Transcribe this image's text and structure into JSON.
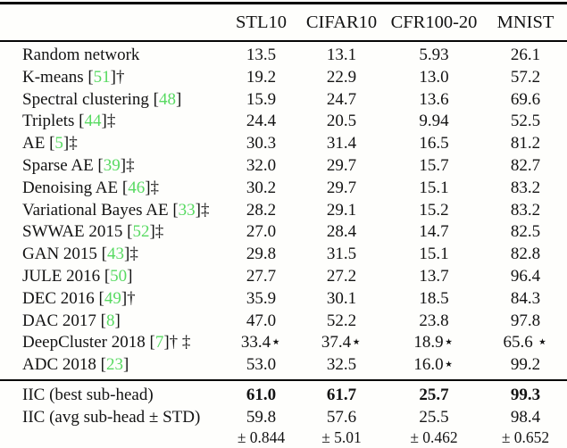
{
  "colors": {
    "citation_green": "#58da62",
    "text": "#131313",
    "rule": "#050505"
  },
  "header": {
    "columns": [
      "STL10",
      "CIFAR10",
      "CFR100-20",
      "MNIST"
    ]
  },
  "rows": [
    {
      "prefix": "Random network",
      "cite": "",
      "suffix": "",
      "values": [
        "13.5",
        "13.1",
        "5.93",
        "26.1"
      ]
    },
    {
      "prefix": "K-means [",
      "cite": "51",
      "suffix": "]†",
      "values": [
        "19.2",
        "22.9",
        "13.0",
        "57.2"
      ]
    },
    {
      "prefix": "Spectral clustering [",
      "cite": "48",
      "suffix": "]",
      "values": [
        "15.9",
        "24.7",
        "13.6",
        "69.6"
      ]
    },
    {
      "prefix": "Triplets [",
      "cite": "44",
      "suffix": "]‡",
      "values": [
        "24.4",
        "20.5",
        "9.94",
        "52.5"
      ]
    },
    {
      "prefix": "AE [",
      "cite": "5",
      "suffix": "]‡",
      "values": [
        "30.3",
        "31.4",
        "16.5",
        "81.2"
      ]
    },
    {
      "prefix": "Sparse AE [",
      "cite": "39",
      "suffix": "]‡",
      "values": [
        "32.0",
        "29.7",
        "15.7",
        "82.7"
      ]
    },
    {
      "prefix": "Denoising AE [",
      "cite": "46",
      "suffix": "]‡",
      "values": [
        "30.2",
        "29.7",
        "15.1",
        "83.2"
      ]
    },
    {
      "prefix": "Variational Bayes AE [",
      "cite": "33",
      "suffix": "]‡",
      "values": [
        "28.2",
        "29.1",
        "15.2",
        "83.2"
      ]
    },
    {
      "prefix": "SWWAE 2015 [",
      "cite": "52",
      "suffix": "]‡",
      "values": [
        "27.0",
        "28.4",
        "14.7",
        "82.5"
      ]
    },
    {
      "prefix": "GAN 2015 [",
      "cite": "43",
      "suffix": "]‡",
      "values": [
        "29.8",
        "31.5",
        "15.1",
        "82.8"
      ]
    },
    {
      "prefix": "JULE 2016 [",
      "cite": "50",
      "suffix": "]",
      "values": [
        "27.7",
        "27.2",
        "13.7",
        "96.4"
      ]
    },
    {
      "prefix": "DEC 2016 [",
      "cite": "49",
      "suffix": "]†",
      "values": [
        "35.9",
        "30.1",
        "18.5",
        "84.3"
      ]
    },
    {
      "prefix": "DAC 2017 [",
      "cite": "8",
      "suffix": "]",
      "values": [
        "47.0",
        "52.2",
        "23.8",
        "97.8"
      ]
    },
    {
      "prefix": "DeepCluster 2018 [",
      "cite": "7",
      "suffix": "]† ‡",
      "values": [
        "33.4⋆",
        "37.4⋆",
        "18.9⋆",
        "65.6 ⋆"
      ]
    },
    {
      "prefix": "ADC 2018 [",
      "cite": "23",
      "suffix": "]",
      "values": [
        "53.0",
        "32.5",
        "16.0⋆",
        "99.2"
      ]
    }
  ],
  "iic": [
    {
      "label": "IIC (best sub-head)",
      "values": [
        "61.0",
        "61.7",
        "25.7",
        "99.3"
      ]
    },
    {
      "label": "IIC (avg sub-head ± STD)",
      "values": [
        "59.8",
        "57.6",
        "25.5",
        "98.4"
      ]
    },
    {
      "label": "",
      "values": [
        "± 0.844",
        "± 5.01",
        "± 0.462",
        "± 0.652"
      ]
    }
  ]
}
